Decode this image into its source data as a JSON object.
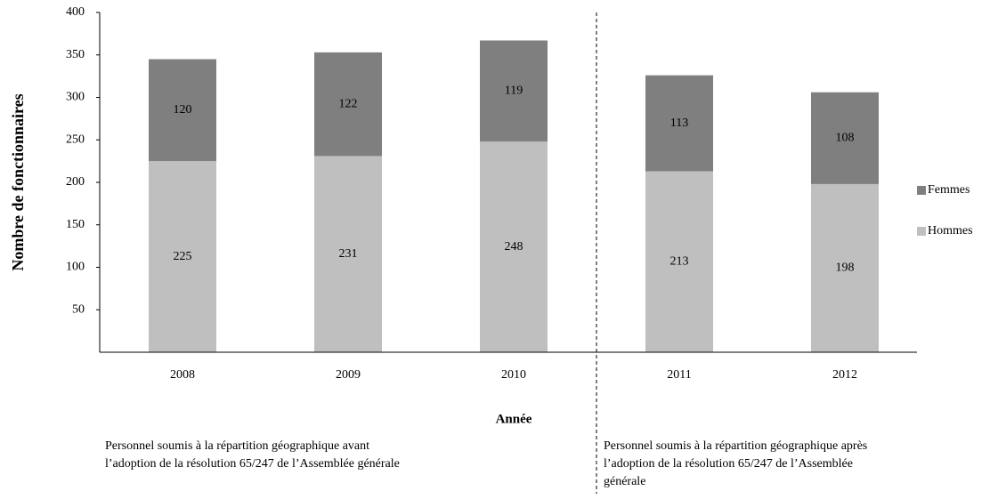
{
  "chart_data": {
    "type": "stacked_bar",
    "x_label": "Année",
    "y_label": "Nombre de fonctionnaires",
    "categories": [
      "2008",
      "2009",
      "2010",
      "2011",
      "2012"
    ],
    "series": [
      {
        "name": "Hommes",
        "color": "#bfbfbf",
        "values": [
          225,
          231,
          248,
          213,
          198
        ]
      },
      {
        "name": "Femmes",
        "color": "#7f7f7f",
        "values": [
          120,
          122,
          119,
          113,
          108
        ]
      }
    ],
    "ylim": [
      0,
      400
    ],
    "yticks": [
      50,
      100,
      150,
      200,
      250,
      300,
      350,
      400
    ],
    "legend": "right",
    "annotations": [
      [
        "Personnel soumis à la répartition géographique avant",
        "l’adoption de la résolution 65/247 de l’Assemblée générale"
      ],
      [
        "Personnel soumis à la répartition géographique après",
        "l’adoption de la résolution 65/247 de l’Assemblée",
        "générale"
      ]
    ]
  }
}
